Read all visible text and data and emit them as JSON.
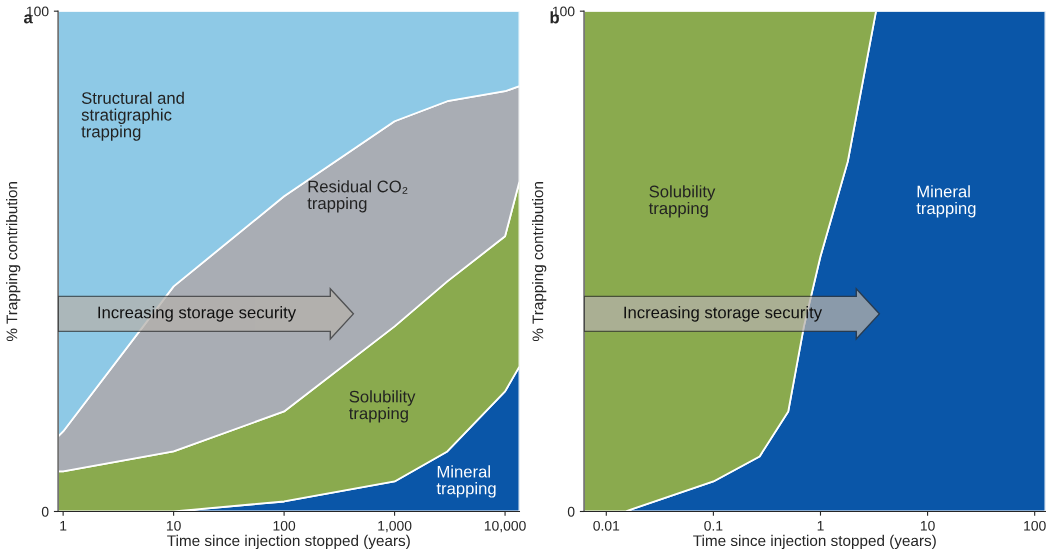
{
  "chart_data": [
    {
      "type": "area",
      "stacked": true,
      "title": "a",
      "xlabel": "Time since injection stopped (years)",
      "ylabel": "% Trapping contribution",
      "log": "x",
      "xlim": [
        0.9,
        13500
      ],
      "ylim": [
        0,
        100
      ],
      "xticks": [
        1,
        10,
        100,
        {
          "value": 1000,
          "label": "1,000"
        },
        {
          "value": 10000,
          "label": "10,000"
        }
      ],
      "yticks": [
        0,
        100
      ],
      "legend": false,
      "x": [
        0.9,
        1,
        10,
        100,
        1000,
        3000,
        10000,
        13500
      ],
      "series": [
        {
          "name": "Mineral\ntrapping",
          "color": "#0a56a8",
          "values": [
            0,
            0,
            0,
            2,
            6,
            12,
            24,
            29
          ]
        },
        {
          "name": "Solubility\ntrapping",
          "color": "#8aaa4e",
          "values": [
            8,
            8,
            12,
            18,
            31,
            34,
            31,
            37
          ]
        },
        {
          "name": "Residual CO₂\ntrapping",
          "color": "#a9adb4",
          "values": [
            7,
            8,
            33,
            43,
            41,
            36,
            29,
            19
          ]
        },
        {
          "name": "Structural and\nstratigraphic\ntrapping",
          "color": "#8ec9e6",
          "values": [
            85,
            84,
            55,
            37,
            22,
            18,
            16,
            15
          ]
        }
      ],
      "annotations": [
        "Increasing storage security"
      ]
    },
    {
      "type": "area",
      "stacked": true,
      "title": "b",
      "xlabel": "Time since injection stopped (years)",
      "ylabel": "% Trapping contribution",
      "log": "x",
      "xlim": [
        0.0062,
        126
      ],
      "ylim": [
        0,
        100
      ],
      "xticks": [
        0.01,
        0.1,
        1,
        10,
        100
      ],
      "yticks": [
        0,
        100
      ],
      "legend": false,
      "x": [
        0.0062,
        0.015,
        0.1,
        0.27,
        0.5,
        0.7,
        1,
        1.8,
        3.3,
        126
      ],
      "series": [
        {
          "name": "Mineral\ntrapping",
          "color": "#0a56a8",
          "values": [
            0,
            0,
            6,
            11,
            20,
            37,
            51,
            70,
            100,
            100
          ]
        },
        {
          "name": "Solubility\ntrapping",
          "color": "#8aaa4e",
          "values": [
            100,
            100,
            94,
            89,
            80,
            63,
            49,
            30,
            0,
            null
          ]
        }
      ],
      "annotations": [
        "Increasing storage security"
      ]
    }
  ]
}
